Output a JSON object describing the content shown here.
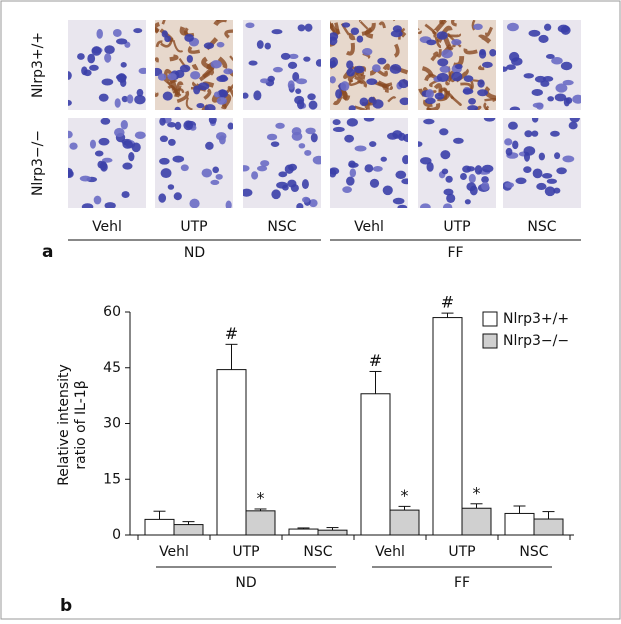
{
  "panel_a": {
    "label": "a",
    "rows": [
      "Nlrp3+/+",
      "Nlrp3−/−"
    ],
    "columns": [
      "Vehl",
      "UTP",
      "NSC",
      "Vehl",
      "UTP",
      "NSC"
    ],
    "groups": [
      "ND",
      "FF"
    ]
  },
  "chart_data": {
    "type": "bar",
    "panel_label": "b",
    "ylabel": [
      "Relative intensity",
      "ratio of IL-1β"
    ],
    "categories": [
      "Vehl",
      "UTP",
      "NSC",
      "Vehl",
      "UTP",
      "NSC"
    ],
    "groups": [
      "ND",
      "FF"
    ],
    "series": [
      {
        "name": "Nlrp3+/+",
        "color": "#ffffff",
        "values": [
          4.2,
          44.5,
          1.6,
          38,
          58.5,
          5.8
        ],
        "errors": [
          2.2,
          6.8,
          0.3,
          6,
          1.2,
          2
        ],
        "markers": [
          null,
          "#",
          null,
          "#",
          "#",
          null
        ]
      },
      {
        "name": "Nlrp3−/−",
        "color": "#d0d0d0",
        "values": [
          2.8,
          6.5,
          1.3,
          6.7,
          7.2,
          4.3
        ],
        "errors": [
          0.8,
          0.5,
          0.7,
          1,
          1.2,
          2
        ],
        "markers": [
          null,
          "*",
          null,
          "*",
          "*",
          null
        ]
      }
    ],
    "ylim": [
      0,
      60
    ],
    "yticks": [
      0,
      15,
      30,
      45,
      60
    ],
    "grid": false,
    "legend": "top-right"
  }
}
